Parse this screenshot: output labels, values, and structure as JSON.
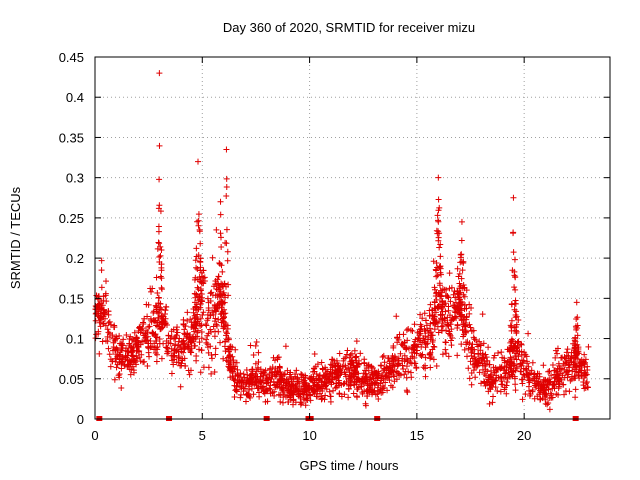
{
  "chart_data": {
    "type": "scatter",
    "title": "Day 360 of 2020, SRMTID for receiver mizu",
    "xlabel": "GPS time / hours",
    "ylabel": "SRMTID / TECUs",
    "xlim": [
      0,
      24
    ],
    "ylim": [
      0,
      0.45
    ],
    "xticks": [
      0,
      5,
      10,
      15,
      20
    ],
    "xtick_labels": [
      "0",
      "5",
      "10",
      "15",
      "20"
    ],
    "yticks": [
      0,
      0.05,
      0.1,
      0.15,
      0.2,
      0.25,
      0.3,
      0.35,
      0.4,
      0.45
    ],
    "ytick_labels": [
      "0",
      "0.05",
      "0.1",
      "0.15",
      "0.2",
      "0.25",
      "0.3",
      "0.35",
      "0.4",
      "0.45"
    ],
    "grid": true,
    "marker": "+",
    "color": "#e00000",
    "zero_markers_x": [
      0.2,
      3.45,
      8.0,
      9.95,
      10.05,
      13.15,
      22.4
    ],
    "profile": {
      "x": [
        0.0,
        0.3,
        0.5,
        0.7,
        1.0,
        1.5,
        2.0,
        2.5,
        2.8,
        3.0,
        3.2,
        3.5,
        4.0,
        4.5,
        4.8,
        5.0,
        5.3,
        5.6,
        5.9,
        6.1,
        6.3,
        6.6,
        7.0,
        7.5,
        8.0,
        8.5,
        9.0,
        9.5,
        10.0,
        10.5,
        11.0,
        11.5,
        12.0,
        12.5,
        13.0,
        13.5,
        14.0,
        14.5,
        15.0,
        15.5,
        15.8,
        16.0,
        16.3,
        16.6,
        16.9,
        17.2,
        17.5,
        18.0,
        18.5,
        19.0,
        19.5,
        19.7,
        19.9,
        20.2,
        20.5,
        21.0,
        21.5,
        22.0,
        22.5,
        23.0
      ],
      "center": [
        0.13,
        0.14,
        0.13,
        0.1,
        0.08,
        0.075,
        0.085,
        0.1,
        0.11,
        0.12,
        0.11,
        0.09,
        0.085,
        0.1,
        0.13,
        0.14,
        0.12,
        0.14,
        0.13,
        0.1,
        0.07,
        0.045,
        0.04,
        0.05,
        0.045,
        0.05,
        0.04,
        0.035,
        0.04,
        0.045,
        0.05,
        0.055,
        0.06,
        0.05,
        0.045,
        0.05,
        0.07,
        0.08,
        0.09,
        0.1,
        0.12,
        0.14,
        0.13,
        0.12,
        0.14,
        0.11,
        0.09,
        0.07,
        0.05,
        0.055,
        0.07,
        0.09,
        0.07,
        0.055,
        0.045,
        0.04,
        0.05,
        0.07,
        0.065,
        0.05
      ],
      "spread": [
        0.03,
        0.035,
        0.03,
        0.03,
        0.025,
        0.02,
        0.025,
        0.03,
        0.04,
        0.04,
        0.035,
        0.025,
        0.025,
        0.035,
        0.05,
        0.06,
        0.045,
        0.06,
        0.05,
        0.04,
        0.025,
        0.018,
        0.015,
        0.018,
        0.018,
        0.02,
        0.018,
        0.015,
        0.015,
        0.018,
        0.02,
        0.022,
        0.022,
        0.02,
        0.018,
        0.02,
        0.025,
        0.03,
        0.03,
        0.035,
        0.04,
        0.05,
        0.045,
        0.04,
        0.045,
        0.04,
        0.03,
        0.025,
        0.02,
        0.02,
        0.025,
        0.035,
        0.025,
        0.02,
        0.018,
        0.018,
        0.02,
        0.03,
        0.025,
        0.02
      ]
    },
    "spikes": [
      {
        "x0": 2.85,
        "x1": 3.15,
        "peak": 0.43
      },
      {
        "x0": 4.6,
        "x1": 5.0,
        "peak": 0.32
      },
      {
        "x0": 5.7,
        "x1": 6.0,
        "peak": 0.27
      },
      {
        "x0": 6.0,
        "x1": 6.25,
        "peak": 0.335
      },
      {
        "x0": 15.8,
        "x1": 16.2,
        "peak": 0.3
      },
      {
        "x0": 16.9,
        "x1": 17.3,
        "peak": 0.245
      },
      {
        "x0": 19.3,
        "x1": 19.7,
        "peak": 0.275
      },
      {
        "x0": 22.3,
        "x1": 22.6,
        "peak": 0.145
      }
    ],
    "num_points": 2200,
    "seed": 360
  }
}
